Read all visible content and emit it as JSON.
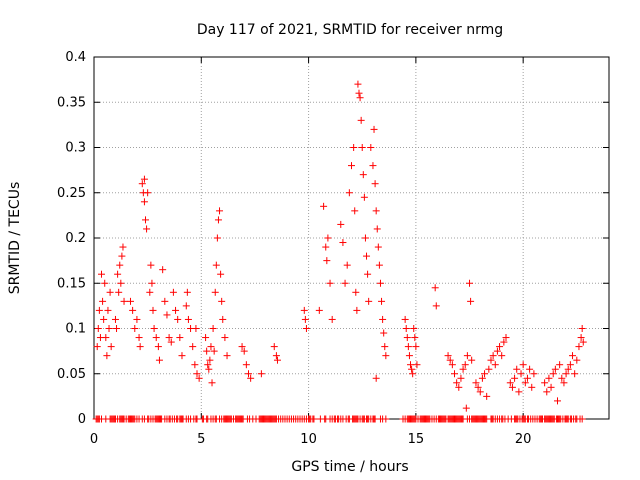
{
  "chart_data": {
    "type": "scatter",
    "title": "Day 117 of 2021, SRMTID for receiver nrmg",
    "xlabel": "GPS time / hours",
    "ylabel": "SRMTID / TECUs",
    "xlim": [
      0,
      24
    ],
    "ylim": [
      0,
      0.4
    ],
    "x_ticks": [
      0,
      5,
      10,
      15,
      20
    ],
    "x_tick_labels": [
      "0",
      "5",
      "10",
      "15",
      "20"
    ],
    "y_ticks": [
      0,
      0.05,
      0.1,
      0.15,
      0.2,
      0.25,
      0.3,
      0.35,
      0.4
    ],
    "y_tick_labels": [
      "0",
      "0.05",
      "0.1",
      "0.15",
      "0.2",
      "0.25",
      "0.3",
      "0.35",
      "0.4"
    ],
    "grid": true,
    "marker": "+",
    "series": [
      {
        "name": "SRMTID",
        "color": "#ff0000",
        "points": [
          [
            0.15,
            0.08
          ],
          [
            0.2,
            0.1
          ],
          [
            0.25,
            0.12
          ],
          [
            0.3,
            0.09
          ],
          [
            0.35,
            0.16
          ],
          [
            0.4,
            0.13
          ],
          [
            0.45,
            0.11
          ],
          [
            0.5,
            0.15
          ],
          [
            0.55,
            0.09
          ],
          [
            0.6,
            0.07
          ],
          [
            0.65,
            0.12
          ],
          [
            0.7,
            0.1
          ],
          [
            0.75,
            0.14
          ],
          [
            0.8,
            0.08
          ],
          [
            1.0,
            0.11
          ],
          [
            1.05,
            0.1
          ],
          [
            1.1,
            0.16
          ],
          [
            1.15,
            0.14
          ],
          [
            1.2,
            0.17
          ],
          [
            1.25,
            0.15
          ],
          [
            1.3,
            0.18
          ],
          [
            1.35,
            0.19
          ],
          [
            1.4,
            0.13
          ],
          [
            1.7,
            0.13
          ],
          [
            1.8,
            0.12
          ],
          [
            1.9,
            0.1
          ],
          [
            2.0,
            0.11
          ],
          [
            2.1,
            0.09
          ],
          [
            2.15,
            0.08
          ],
          [
            2.25,
            0.26
          ],
          [
            2.3,
            0.25
          ],
          [
            2.35,
            0.24
          ],
          [
            2.4,
            0.22
          ],
          [
            2.45,
            0.21
          ],
          [
            2.5,
            0.25
          ],
          [
            2.35,
            0.265
          ],
          [
            2.6,
            0.14
          ],
          [
            2.65,
            0.17
          ],
          [
            2.7,
            0.15
          ],
          [
            2.75,
            0.12
          ],
          [
            2.8,
            0.1
          ],
          [
            2.9,
            0.09
          ],
          [
            3.0,
            0.08
          ],
          [
            3.05,
            0.065
          ],
          [
            3.2,
            0.165
          ],
          [
            3.3,
            0.13
          ],
          [
            3.4,
            0.115
          ],
          [
            3.5,
            0.09
          ],
          [
            3.6,
            0.085
          ],
          [
            3.7,
            0.14
          ],
          [
            3.8,
            0.12
          ],
          [
            3.9,
            0.11
          ],
          [
            4.0,
            0.09
          ],
          [
            4.1,
            0.07
          ],
          [
            4.3,
            0.125
          ],
          [
            4.35,
            0.14
          ],
          [
            4.4,
            0.11
          ],
          [
            4.5,
            0.1
          ],
          [
            4.6,
            0.08
          ],
          [
            4.7,
            0.06
          ],
          [
            4.8,
            0.05
          ],
          [
            4.9,
            0.045
          ],
          [
            4.75,
            0.1
          ],
          [
            5.2,
            0.09
          ],
          [
            5.25,
            0.075
          ],
          [
            5.3,
            0.06
          ],
          [
            5.35,
            0.055
          ],
          [
            5.4,
            0.065
          ],
          [
            5.45,
            0.08
          ],
          [
            5.5,
            0.04
          ],
          [
            5.55,
            0.1
          ],
          [
            5.6,
            0.075
          ],
          [
            5.65,
            0.14
          ],
          [
            5.7,
            0.17
          ],
          [
            5.75,
            0.2
          ],
          [
            5.8,
            0.22
          ],
          [
            5.85,
            0.23
          ],
          [
            5.9,
            0.16
          ],
          [
            5.95,
            0.13
          ],
          [
            6.0,
            0.11
          ],
          [
            6.1,
            0.09
          ],
          [
            6.2,
            0.07
          ],
          [
            6.9,
            0.08
          ],
          [
            7.0,
            0.075
          ],
          [
            7.1,
            0.06
          ],
          [
            7.2,
            0.05
          ],
          [
            7.3,
            0.045
          ],
          [
            7.8,
            0.05
          ],
          [
            8.4,
            0.08
          ],
          [
            8.5,
            0.07
          ],
          [
            8.55,
            0.065
          ],
          [
            9.8,
            0.12
          ],
          [
            9.85,
            0.11
          ],
          [
            9.9,
            0.1
          ],
          [
            10.5,
            0.12
          ],
          [
            10.7,
            0.235
          ],
          [
            10.8,
            0.19
          ],
          [
            10.85,
            0.175
          ],
          [
            10.9,
            0.2
          ],
          [
            11.0,
            0.15
          ],
          [
            11.1,
            0.11
          ],
          [
            11.5,
            0.215
          ],
          [
            11.6,
            0.195
          ],
          [
            11.7,
            0.15
          ],
          [
            11.8,
            0.17
          ],
          [
            11.9,
            0.25
          ],
          [
            12.0,
            0.28
          ],
          [
            12.1,
            0.3
          ],
          [
            12.15,
            0.23
          ],
          [
            12.2,
            0.14
          ],
          [
            12.25,
            0.12
          ],
          [
            12.3,
            0.37
          ],
          [
            12.35,
            0.36
          ],
          [
            12.4,
            0.355
          ],
          [
            12.45,
            0.33
          ],
          [
            12.5,
            0.3
          ],
          [
            12.55,
            0.27
          ],
          [
            12.6,
            0.245
          ],
          [
            12.65,
            0.2
          ],
          [
            12.7,
            0.18
          ],
          [
            12.75,
            0.16
          ],
          [
            12.8,
            0.13
          ],
          [
            12.9,
            0.3
          ],
          [
            13.0,
            0.28
          ],
          [
            13.05,
            0.32
          ],
          [
            13.1,
            0.26
          ],
          [
            13.15,
            0.23
          ],
          [
            13.2,
            0.21
          ],
          [
            13.25,
            0.19
          ],
          [
            13.3,
            0.17
          ],
          [
            13.35,
            0.15
          ],
          [
            13.4,
            0.13
          ],
          [
            13.45,
            0.11
          ],
          [
            13.5,
            0.095
          ],
          [
            13.55,
            0.08
          ],
          [
            13.6,
            0.07
          ],
          [
            13.15,
            0.045
          ],
          [
            14.5,
            0.11
          ],
          [
            14.55,
            0.1
          ],
          [
            14.6,
            0.09
          ],
          [
            14.65,
            0.08
          ],
          [
            14.7,
            0.07
          ],
          [
            14.75,
            0.06
          ],
          [
            14.8,
            0.055
          ],
          [
            14.85,
            0.05
          ],
          [
            14.9,
            0.1
          ],
          [
            14.95,
            0.09
          ],
          [
            15.0,
            0.08
          ],
          [
            15.05,
            0.06
          ],
          [
            15.9,
            0.145
          ],
          [
            15.95,
            0.125
          ],
          [
            16.5,
            0.07
          ],
          [
            16.6,
            0.065
          ],
          [
            16.7,
            0.06
          ],
          [
            16.8,
            0.05
          ],
          [
            16.9,
            0.04
          ],
          [
            17.0,
            0.035
          ],
          [
            17.1,
            0.045
          ],
          [
            17.2,
            0.055
          ],
          [
            17.3,
            0.06
          ],
          [
            17.35,
            0.012
          ],
          [
            17.4,
            0.07
          ],
          [
            17.5,
            0.15
          ],
          [
            17.55,
            0.13
          ],
          [
            17.6,
            0.065
          ],
          [
            17.8,
            0.04
          ],
          [
            17.9,
            0.035
          ],
          [
            18.0,
            0.03
          ],
          [
            18.1,
            0.045
          ],
          [
            18.2,
            0.05
          ],
          [
            18.3,
            0.025
          ],
          [
            18.4,
            0.055
          ],
          [
            18.5,
            0.065
          ],
          [
            18.6,
            0.07
          ],
          [
            18.7,
            0.06
          ],
          [
            18.8,
            0.075
          ],
          [
            18.9,
            0.08
          ],
          [
            19.0,
            0.07
          ],
          [
            19.1,
            0.085
          ],
          [
            19.2,
            0.09
          ],
          [
            19.4,
            0.04
          ],
          [
            19.5,
            0.035
          ],
          [
            19.6,
            0.045
          ],
          [
            19.7,
            0.055
          ],
          [
            19.8,
            0.03
          ],
          [
            19.9,
            0.05
          ],
          [
            20.0,
            0.06
          ],
          [
            20.1,
            0.04
          ],
          [
            20.2,
            0.045
          ],
          [
            20.3,
            0.055
          ],
          [
            20.4,
            0.035
          ],
          [
            20.5,
            0.05
          ],
          [
            21.0,
            0.04
          ],
          [
            21.1,
            0.03
          ],
          [
            21.2,
            0.045
          ],
          [
            21.3,
            0.035
          ],
          [
            21.4,
            0.05
          ],
          [
            21.5,
            0.055
          ],
          [
            21.6,
            0.02
          ],
          [
            21.7,
            0.06
          ],
          [
            21.8,
            0.045
          ],
          [
            21.9,
            0.04
          ],
          [
            22.0,
            0.05
          ],
          [
            22.1,
            0.055
          ],
          [
            22.2,
            0.06
          ],
          [
            22.3,
            0.07
          ],
          [
            22.4,
            0.05
          ],
          [
            22.5,
            0.065
          ],
          [
            22.6,
            0.08
          ],
          [
            22.7,
            0.09
          ],
          [
            22.75,
            0.1
          ],
          [
            22.8,
            0.085
          ]
        ],
        "zero_points": [
          0.1,
          0.15,
          0.2,
          0.25,
          0.35,
          0.55,
          0.75,
          0.8,
          0.85,
          0.9,
          0.95,
          1.0,
          1.1,
          1.2,
          1.25,
          1.3,
          1.35,
          1.4,
          1.5,
          1.6,
          1.65,
          1.7,
          1.75,
          1.8,
          1.85,
          1.9,
          2.0,
          2.1,
          2.25,
          2.35,
          2.5,
          2.55,
          2.65,
          2.75,
          2.85,
          2.9,
          2.95,
          3.0,
          3.05,
          3.1,
          3.15,
          3.3,
          3.4,
          3.5,
          3.55,
          3.65,
          3.75,
          3.85,
          3.9,
          4.0,
          4.05,
          4.1,
          4.15,
          4.3,
          4.4,
          4.5,
          4.65,
          4.75,
          4.8,
          5.05,
          5.1,
          5.25,
          5.3,
          5.45,
          5.55,
          5.65,
          5.7,
          5.85,
          5.95,
          6.05,
          6.1,
          6.15,
          6.2,
          6.25,
          6.3,
          6.35,
          6.4,
          6.5,
          6.6,
          6.65,
          6.7,
          6.75,
          6.8,
          6.85,
          6.9,
          6.95,
          7.15,
          7.25,
          7.4,
          7.55,
          7.7,
          7.75,
          7.8,
          7.85,
          7.9,
          7.95,
          8.0,
          8.05,
          8.1,
          8.15,
          8.2,
          8.25,
          8.3,
          8.35,
          8.4,
          8.45,
          8.5,
          8.6,
          8.7,
          8.8,
          8.9,
          9.0,
          9.1,
          9.2,
          9.3,
          9.4,
          9.5,
          9.6,
          9.7,
          9.8,
          9.9,
          10.0,
          10.05,
          10.1,
          10.2,
          10.25,
          10.55,
          10.75,
          10.8,
          11.0,
          11.1,
          11.2,
          11.25,
          11.35,
          11.4,
          11.5,
          11.6,
          11.75,
          11.85,
          11.9,
          12.05,
          12.1,
          12.15,
          12.2,
          12.25,
          12.3,
          12.4,
          12.5,
          12.55,
          12.6,
          12.7,
          12.75,
          12.8,
          12.9,
          13.0,
          13.05,
          13.1,
          13.35,
          13.45,
          13.6,
          14.4,
          14.5,
          14.6,
          14.65,
          14.7,
          14.75,
          14.8,
          14.85,
          14.9,
          14.95,
          15.0,
          15.1,
          15.2,
          15.25,
          15.3,
          15.35,
          15.4,
          15.45,
          15.5,
          15.55,
          15.6,
          15.65,
          15.75,
          15.85,
          15.95,
          16.05,
          16.1,
          16.15,
          16.2,
          16.25,
          16.3,
          16.35,
          16.4,
          16.5,
          16.55,
          16.6,
          16.65,
          16.7,
          16.75,
          16.8,
          16.85,
          16.9,
          16.95,
          17.0,
          17.05,
          17.1,
          17.15,
          17.2,
          17.4,
          17.5,
          17.6,
          17.65,
          17.7,
          17.75,
          17.8,
          17.85,
          17.9,
          17.95,
          18.0,
          18.05,
          18.1,
          18.15,
          18.2,
          18.25,
          18.3,
          18.5,
          18.55,
          18.6,
          18.7,
          18.8,
          18.9,
          19.0,
          19.05,
          19.15,
          19.3,
          19.45,
          19.6,
          19.65,
          19.7,
          19.75,
          19.85,
          19.95,
          20.0,
          20.05,
          20.1,
          20.2,
          20.25,
          20.35,
          20.45,
          20.55,
          20.65,
          20.75,
          20.8,
          20.85,
          20.9,
          21.0,
          21.05,
          21.1,
          21.15,
          21.2,
          21.25,
          21.3,
          21.35,
          21.4,
          21.45,
          21.55,
          21.6,
          21.65,
          21.7,
          21.75,
          21.85,
          21.95,
          22.0,
          22.05,
          22.1,
          22.2,
          22.25,
          22.35,
          22.45,
          22.5,
          22.65,
          22.75
        ]
      }
    ]
  }
}
